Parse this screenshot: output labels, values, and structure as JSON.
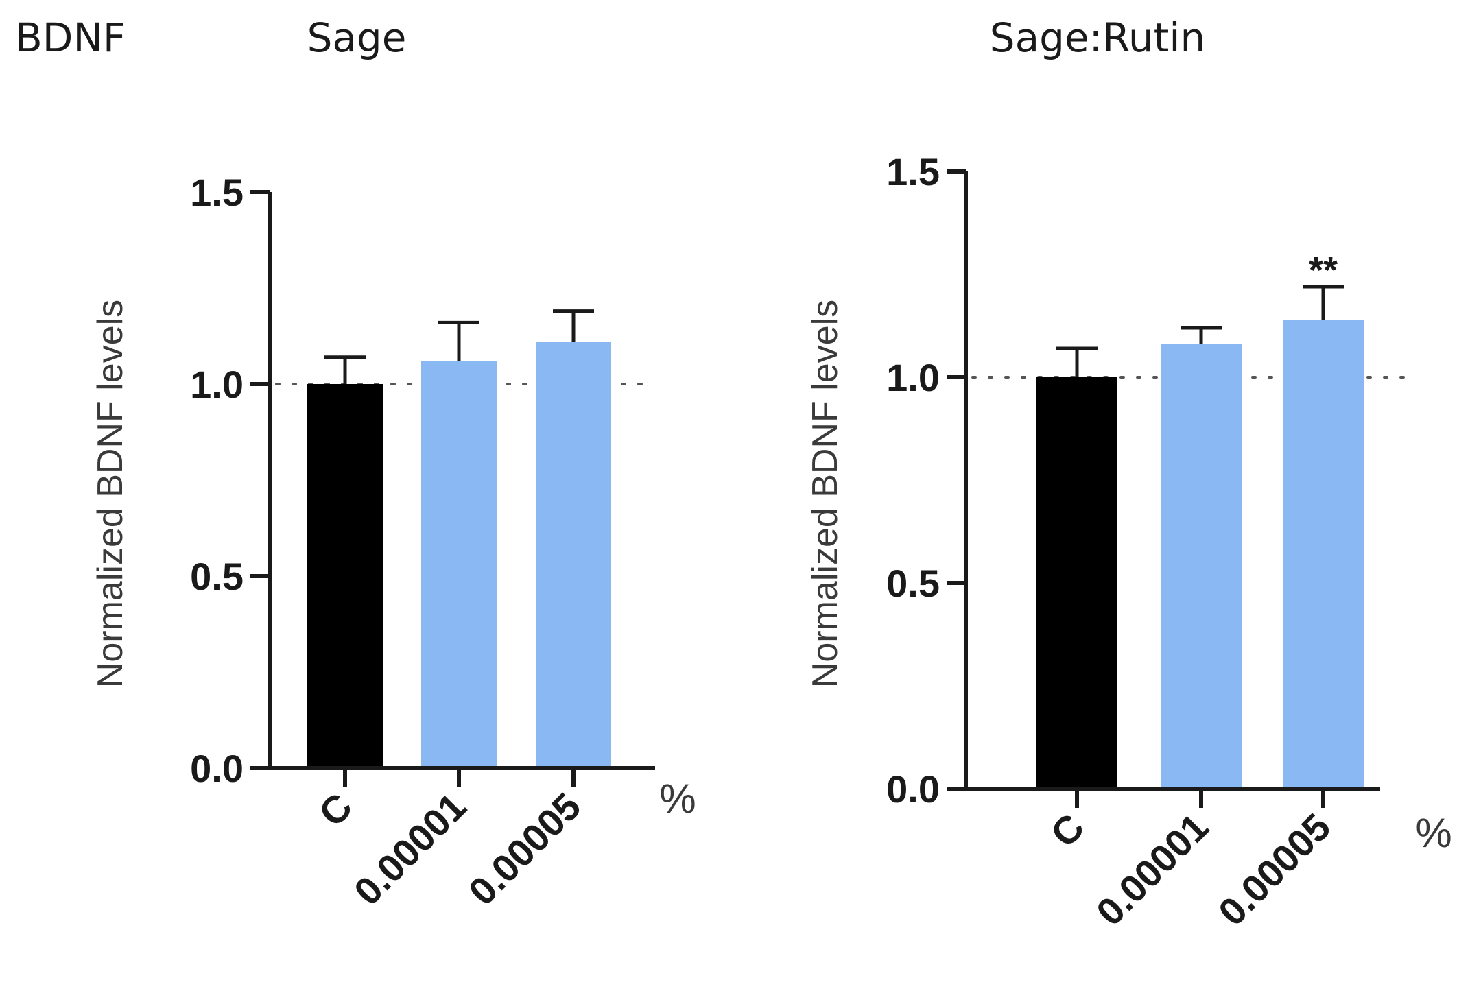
{
  "figure": {
    "label": "BDNF"
  },
  "colors": {
    "control": "#000000",
    "treatment": "#8ab8f3",
    "axis": "#1a1a1a"
  },
  "chart_data": [
    {
      "type": "bar",
      "title": "Sage",
      "ylabel": "Normalized BDNF levels",
      "xunit": "%",
      "categories": [
        "C",
        "0.00001",
        "0.00005"
      ],
      "values": [
        1.0,
        1.06,
        1.11
      ],
      "errors": [
        0.07,
        0.1,
        0.08
      ],
      "annotations": [
        "",
        "",
        ""
      ],
      "bar_colors": [
        "#000000",
        "#8ab8f3",
        "#8ab8f3"
      ],
      "ylim": [
        0,
        1.5
      ],
      "yticks": [
        0.0,
        0.5,
        1.0,
        1.5
      ],
      "ytick_labels": [
        "0.0",
        "0.5",
        "1.0",
        "1.5"
      ],
      "reference_line": 1.0,
      "grid": false
    },
    {
      "type": "bar",
      "title": "Sage:Rutin",
      "ylabel": "Normalized BDNF levels",
      "xunit": "%",
      "categories": [
        "C",
        "0.00001",
        "0.00005"
      ],
      "values": [
        1.0,
        1.08,
        1.14
      ],
      "errors": [
        0.07,
        0.04,
        0.08
      ],
      "annotations": [
        "",
        "",
        "**"
      ],
      "bar_colors": [
        "#000000",
        "#8ab8f3",
        "#8ab8f3"
      ],
      "ylim": [
        0,
        1.5
      ],
      "yticks": [
        0.0,
        0.5,
        1.0,
        1.5
      ],
      "ytick_labels": [
        "0.0",
        "0.5",
        "1.0",
        "1.5"
      ],
      "reference_line": 1.0,
      "grid": false
    }
  ]
}
